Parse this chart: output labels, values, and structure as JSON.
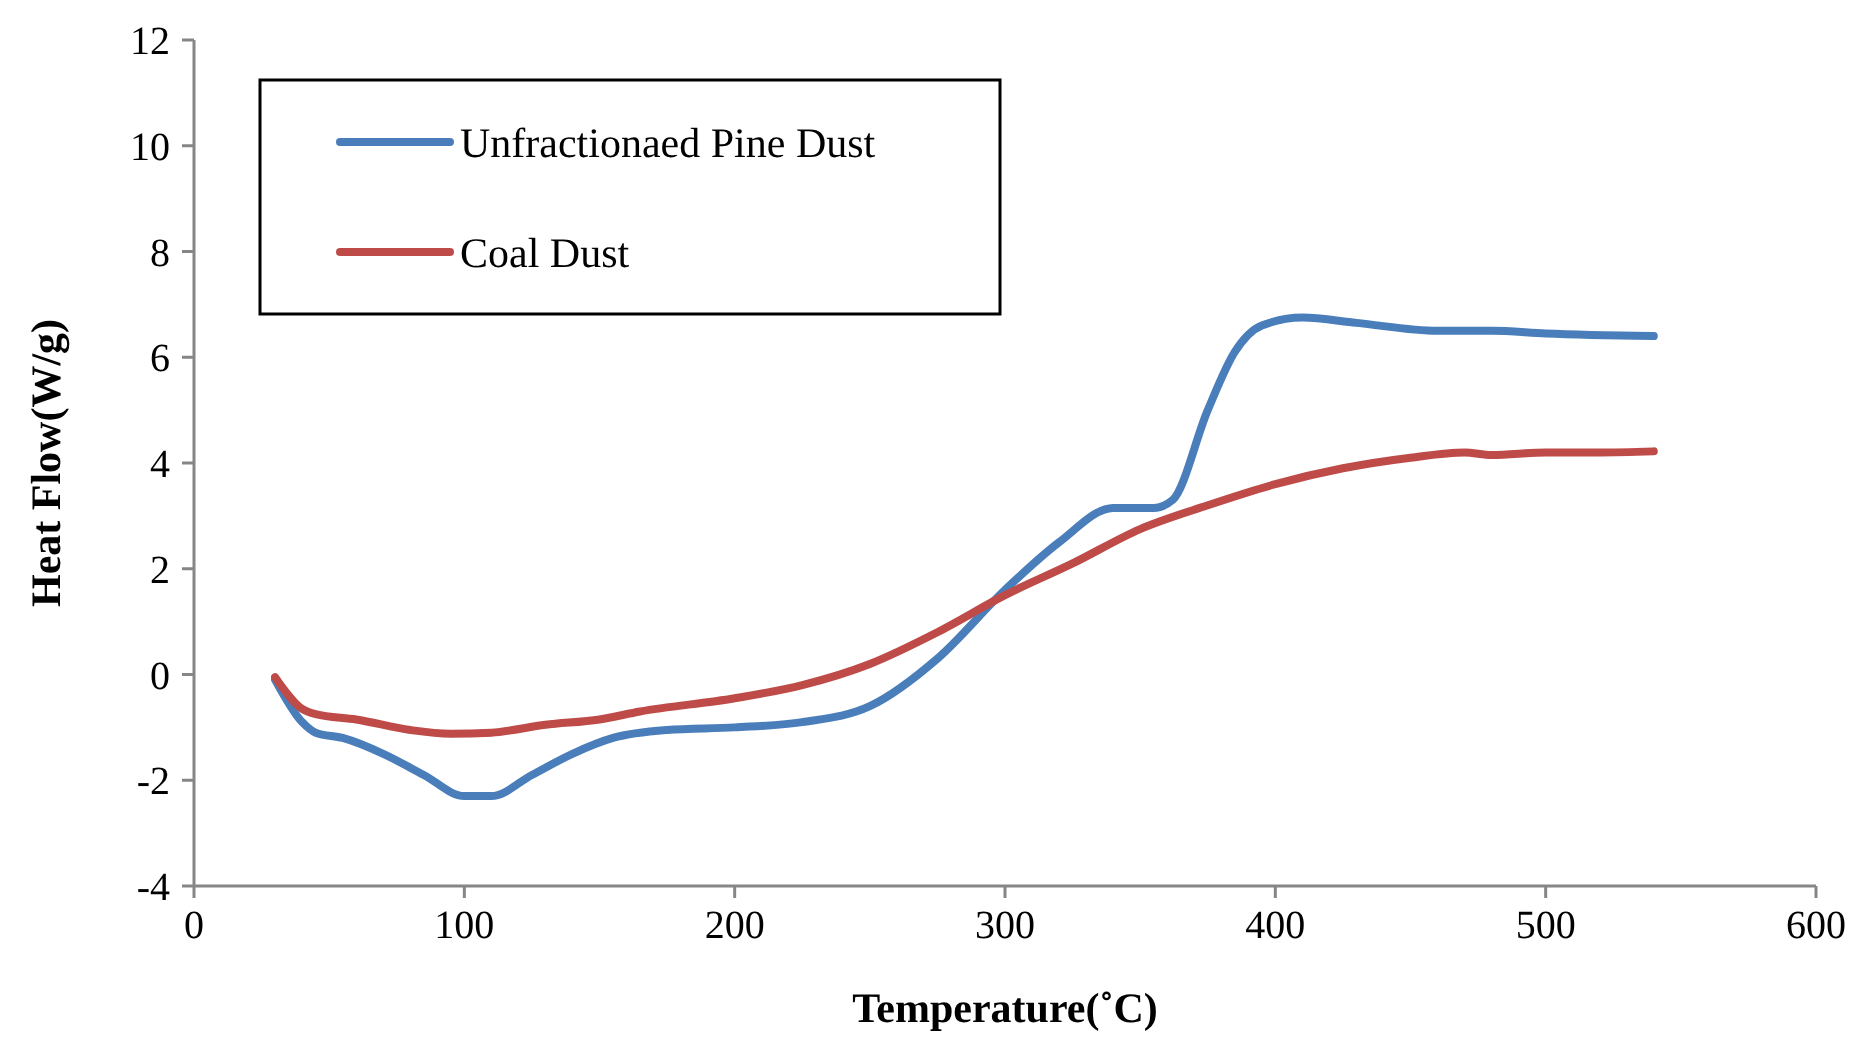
{
  "chart_data": {
    "type": "line",
    "xlabel": "Temperature(˚C)",
    "ylabel": "Heat Flow(W/g)",
    "xlim": [
      0,
      600
    ],
    "xticks": [
      0,
      100,
      200,
      300,
      400,
      500,
      600
    ],
    "ylim": [
      -4,
      12
    ],
    "yticks": [
      -4,
      -2,
      0,
      2,
      4,
      6,
      8,
      10,
      12
    ],
    "legend": "top left",
    "grid": false,
    "marker": "none",
    "line_style": "solid",
    "series": [
      {
        "name": "Unfractionaed Pine Dust",
        "color": "#4a7ebb",
        "x": [
          30,
          40,
          45,
          55,
          70,
          85,
          100,
          110,
          125,
          140,
          155,
          175,
          200,
          225,
          250,
          275,
          300,
          320,
          340,
          355,
          362,
          375,
          385,
          395,
          410,
          430,
          460,
          480,
          500,
          540
        ],
        "values": [
          -0.1,
          -0.9,
          -1.1,
          -1.2,
          -1.5,
          -1.9,
          -2.3,
          -2.3,
          -1.9,
          -1.5,
          -1.2,
          -1.05,
          -1.0,
          -0.9,
          -0.6,
          0.3,
          1.6,
          2.5,
          3.15,
          3.15,
          3.3,
          5.0,
          6.1,
          6.6,
          6.75,
          6.65,
          6.5,
          6.5,
          6.45,
          6.4
        ]
      },
      {
        "name": "Coal Dust",
        "color": "#be4b48",
        "x": [
          30,
          40,
          45,
          60,
          80,
          95,
          110,
          130,
          150,
          165,
          200,
          225,
          250,
          275,
          300,
          325,
          350,
          375,
          400,
          425,
          450,
          470,
          480,
          500,
          520,
          540
        ],
        "values": [
          -0.05,
          -0.65,
          -0.75,
          -0.85,
          -1.05,
          -1.12,
          -1.1,
          -0.95,
          -0.85,
          -0.7,
          -0.45,
          -0.2,
          0.2,
          0.8,
          1.5,
          2.1,
          2.75,
          3.2,
          3.6,
          3.9,
          4.1,
          4.2,
          4.15,
          4.2,
          4.2,
          4.22
        ]
      }
    ]
  }
}
